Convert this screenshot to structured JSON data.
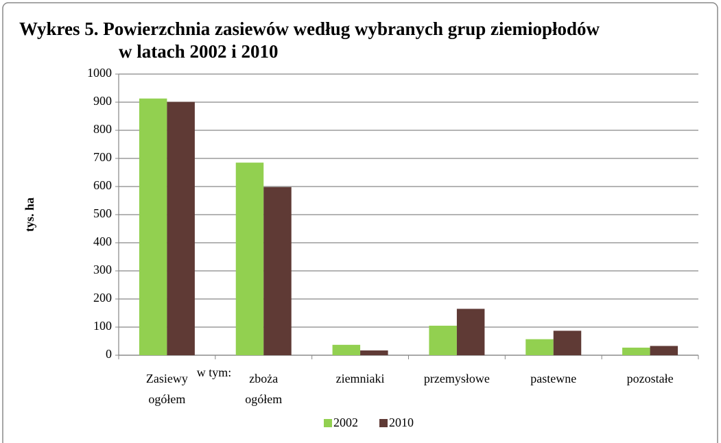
{
  "chart_data": {
    "type": "bar",
    "title": [
      "Wykres 5. Powierzchnia zasiewów według wybranych grup ziemiopłodów",
      "w latach 2002 i 2010"
    ],
    "ylabel": "tys. ha",
    "annotation": "w tym:",
    "categories": [
      [
        "Zasiewy",
        "ogółem"
      ],
      [
        "zboża",
        "ogółem"
      ],
      [
        "ziemniaki"
      ],
      [
        "przemysłowe"
      ],
      [
        "pastewne"
      ],
      [
        "pozostałe"
      ]
    ],
    "series": [
      {
        "name": "2002",
        "color": "#92d050",
        "values": [
          913,
          685,
          37,
          105,
          57,
          27
        ]
      },
      {
        "name": "2010",
        "color": "#5f3a35",
        "values": [
          901,
          598,
          17,
          165,
          87,
          33
        ]
      }
    ],
    "ylim": [
      0,
      1000
    ],
    "yticks": [
      0,
      100,
      200,
      300,
      400,
      500,
      600,
      700,
      800,
      900,
      1000
    ],
    "grid": true,
    "legend": "bottom"
  }
}
